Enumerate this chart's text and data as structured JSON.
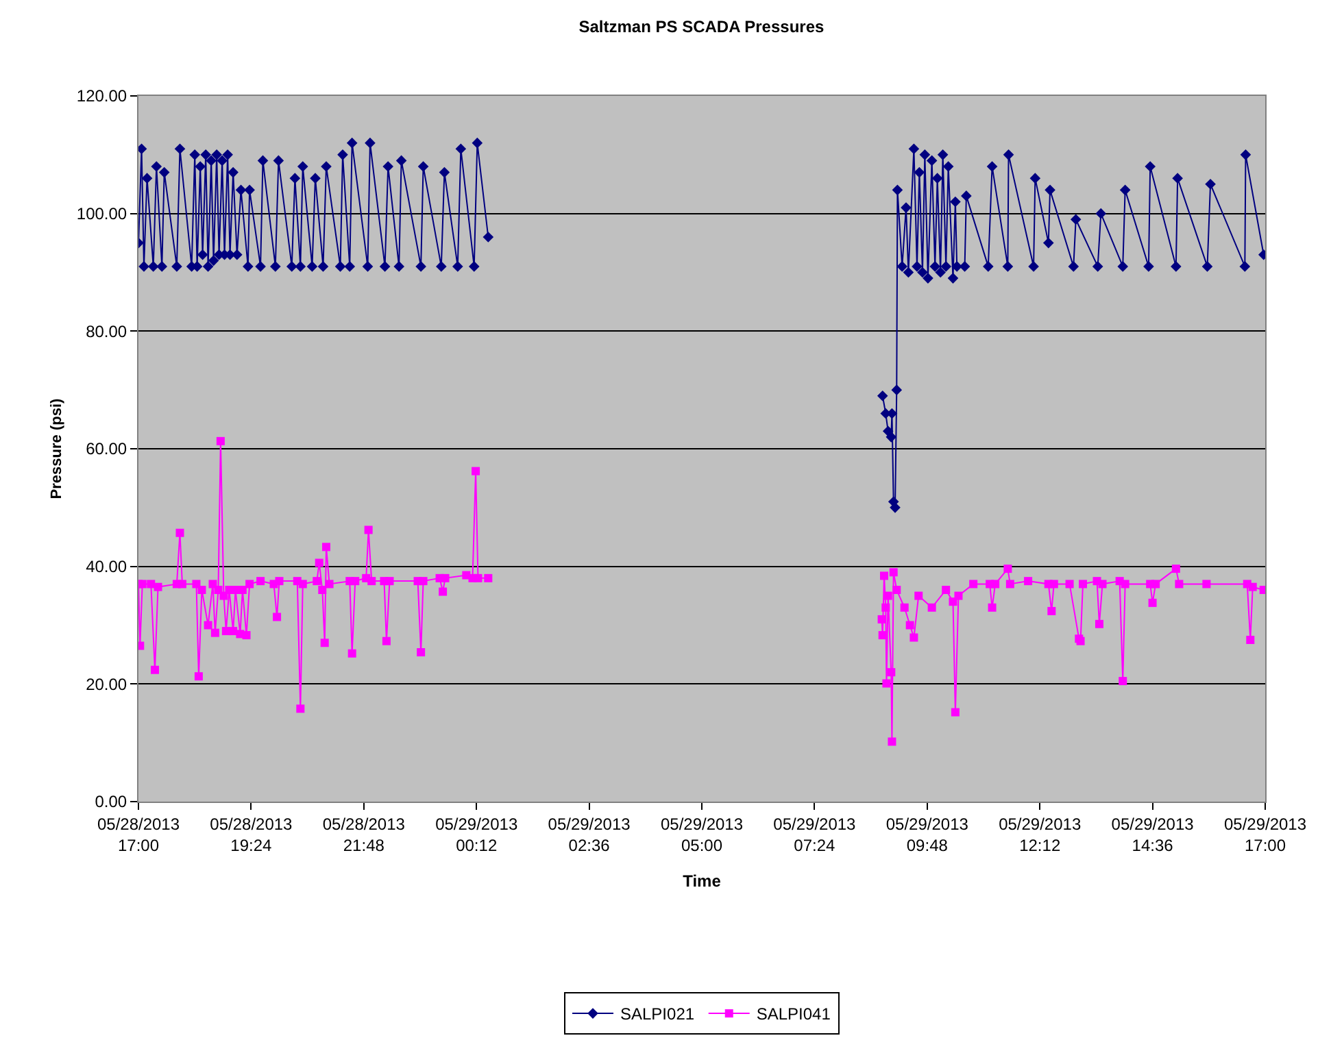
{
  "chart_data": {
    "type": "line",
    "title": "Saltzman PS SCADA Pressures",
    "xlabel": "Time",
    "ylabel": "Pressure (psi)",
    "xlim": [
      "2013-05-28T17:00",
      "2013-05-29T17:00"
    ],
    "xticks": [
      {
        "value": "2013-05-28T17:00",
        "label": "05/28/2013\n17:00"
      },
      {
        "value": "2013-05-28T19:24",
        "label": "05/28/2013\n19:24"
      },
      {
        "value": "2013-05-28T21:48",
        "label": "05/28/2013\n21:48"
      },
      {
        "value": "2013-05-29T00:12",
        "label": "05/29/2013\n00:12"
      },
      {
        "value": "2013-05-29T02:36",
        "label": "05/29/2013\n02:36"
      },
      {
        "value": "2013-05-29T05:00",
        "label": "05/29/2013\n05:00"
      },
      {
        "value": "2013-05-29T07:24",
        "label": "05/29/2013\n07:24"
      },
      {
        "value": "2013-05-29T09:48",
        "label": "05/29/2013\n09:48"
      },
      {
        "value": "2013-05-29T12:12",
        "label": "05/29/2013\n12:12"
      },
      {
        "value": "2013-05-29T14:36",
        "label": "05/29/2013\n14:36"
      },
      {
        "value": "2013-05-29T17:00",
        "label": "05/29/2013\n17:00"
      }
    ],
    "ylim": [
      0,
      120
    ],
    "yticks": [
      {
        "value": 0,
        "label": "0.00"
      },
      {
        "value": 20,
        "label": "20.00"
      },
      {
        "value": 40,
        "label": "40.00"
      },
      {
        "value": 60,
        "label": "60.00"
      },
      {
        "value": 80,
        "label": "80.00"
      },
      {
        "value": 100,
        "label": "100.00"
      },
      {
        "value": 120,
        "label": "120.00"
      }
    ],
    "grid": "y",
    "legend": "bottom",
    "line_style": "solid",
    "series": [
      {
        "name": "SALPI021",
        "color": "#000080",
        "marker": "diamond",
        "x": [
          "2013-05-28T17:00",
          "2013-05-28T17:04",
          "2013-05-28T17:07",
          "2013-05-28T17:11",
          "2013-05-28T17:19",
          "2013-05-28T17:23",
          "2013-05-28T17:30",
          "2013-05-28T17:33",
          "2013-05-28T17:49",
          "2013-05-28T17:53",
          "2013-05-28T18:08",
          "2013-05-28T18:12",
          "2013-05-28T18:15",
          "2013-05-28T18:19",
          "2013-05-28T18:22",
          "2013-05-28T18:26",
          "2013-05-28T18:29",
          "2013-05-28T18:33",
          "2013-05-28T18:36",
          "2013-05-28T18:40",
          "2013-05-28T18:43",
          "2013-05-28T18:47",
          "2013-05-28T18:50",
          "2013-05-28T18:54",
          "2013-05-28T18:57",
          "2013-05-28T19:01",
          "2013-05-28T19:06",
          "2013-05-28T19:11",
          "2013-05-28T19:20",
          "2013-05-28T19:22",
          "2013-05-28T19:36",
          "2013-05-28T19:39",
          "2013-05-28T19:55",
          "2013-05-28T19:59",
          "2013-05-28T20:16",
          "2013-05-28T20:20",
          "2013-05-28T20:27",
          "2013-05-28T20:30",
          "2013-05-28T20:42",
          "2013-05-28T20:46",
          "2013-05-28T20:56",
          "2013-05-28T21:00",
          "2013-05-28T21:18",
          "2013-05-28T21:21",
          "2013-05-28T21:30",
          "2013-05-28T21:33",
          "2013-05-28T21:53",
          "2013-05-28T21:56",
          "2013-05-28T22:15",
          "2013-05-28T22:19",
          "2013-05-28T22:33",
          "2013-05-28T22:36",
          "2013-05-28T23:01",
          "2013-05-28T23:04",
          "2013-05-28T23:27",
          "2013-05-28T23:31",
          "2013-05-28T23:48",
          "2013-05-28T23:52",
          "2013-05-29T00:09",
          "2013-05-29T00:13",
          "2013-05-29T00:27",
          "2013-05-29T04:00",
          "2013-05-29T08:51",
          "2013-05-29T08:55",
          "2013-05-29T08:58",
          "2013-05-29T09:02",
          "2013-05-29T09:03",
          "2013-05-29T09:05",
          "2013-05-29T09:07",
          "2013-05-29T09:09",
          "2013-05-29T09:10",
          "2013-05-29T09:16",
          "2013-05-29T09:21",
          "2013-05-29T09:24",
          "2013-05-29T09:31",
          "2013-05-29T09:35",
          "2013-05-29T09:38",
          "2013-05-29T09:42",
          "2013-05-29T09:45",
          "2013-05-29T09:49",
          "2013-05-29T09:54",
          "2013-05-29T09:58",
          "2013-05-29T10:01",
          "2013-05-29T10:05",
          "2013-05-29T10:08",
          "2013-05-29T10:12",
          "2013-05-29T10:15",
          "2013-05-29T10:21",
          "2013-05-29T10:24",
          "2013-05-29T10:26",
          "2013-05-29T10:36",
          "2013-05-29T10:38",
          "2013-05-29T11:06",
          "2013-05-29T11:11",
          "2013-05-29T11:31",
          "2013-05-29T11:32",
          "2013-05-29T12:04",
          "2013-05-29T12:06",
          "2013-05-29T12:23",
          "2013-05-29T12:25",
          "2013-05-29T12:55",
          "2013-05-29T12:58",
          "2013-05-29T13:26",
          "2013-05-29T13:30",
          "2013-05-29T13:58",
          "2013-05-29T14:01",
          "2013-05-29T14:31",
          "2013-05-29T14:33",
          "2013-05-29T15:06",
          "2013-05-29T15:08",
          "2013-05-29T15:46",
          "2013-05-29T15:50",
          "2013-05-29T16:34",
          "2013-05-29T16:35",
          "2013-05-29T16:58"
        ],
        "values": [
          95,
          111,
          91,
          106,
          91,
          108,
          91,
          107,
          91,
          111,
          91,
          110,
          91,
          108,
          93,
          110,
          91,
          109,
          92,
          110,
          93,
          109,
          93,
          110,
          93,
          107,
          93,
          104,
          91,
          104,
          91,
          109,
          91,
          109,
          91,
          106,
          91,
          108,
          91,
          106,
          91,
          108,
          91,
          110,
          91,
          112,
          91,
          112,
          91,
          108,
          91,
          109,
          91,
          108,
          91,
          107,
          91,
          111,
          91,
          112,
          96,
          null,
          69,
          66,
          63,
          62,
          66,
          51,
          50,
          70,
          104,
          91,
          101,
          90,
          111,
          91,
          107,
          90,
          110,
          89,
          109,
          91,
          106,
          90,
          110,
          91,
          108,
          89,
          102,
          91,
          91,
          103,
          91,
          108,
          91,
          110,
          91,
          106,
          95,
          104,
          91,
          99,
          91,
          100,
          91,
          104,
          91,
          108,
          91,
          106,
          91,
          105,
          91,
          110,
          93
        ]
      },
      {
        "name": "SALPI041",
        "color": "#ff00ff",
        "marker": "square",
        "x": [
          "2013-05-28T17:00",
          "2013-05-28T17:02",
          "2013-05-28T17:05",
          "2013-05-28T17:16",
          "2013-05-28T17:21",
          "2013-05-28T17:25",
          "2013-05-28T17:49",
          "2013-05-28T17:53",
          "2013-05-28T17:56",
          "2013-05-28T18:14",
          "2013-05-28T18:17",
          "2013-05-28T18:21",
          "2013-05-28T18:29",
          "2013-05-28T18:35",
          "2013-05-28T18:38",
          "2013-05-28T18:42",
          "2013-05-28T18:45",
          "2013-05-28T18:49",
          "2013-05-28T18:52",
          "2013-05-28T18:56",
          "2013-05-28T19:01",
          "2013-05-28T19:04",
          "2013-05-28T19:10",
          "2013-05-28T19:13",
          "2013-05-28T19:18",
          "2013-05-28T19:22",
          "2013-05-28T19:36",
          "2013-05-28T19:53",
          "2013-05-28T19:57",
          "2013-05-28T20:00",
          "2013-05-28T20:23",
          "2013-05-28T20:27",
          "2013-05-28T20:30",
          "2013-05-28T20:48",
          "2013-05-28T20:51",
          "2013-05-28T20:55",
          "2013-05-28T20:58",
          "2013-05-28T21:00",
          "2013-05-28T21:04",
          "2013-05-28T21:30",
          "2013-05-28T21:33",
          "2013-05-28T21:37",
          "2013-05-28T21:51",
          "2013-05-28T21:54",
          "2013-05-28T21:58",
          "2013-05-28T22:14",
          "2013-05-28T22:17",
          "2013-05-28T22:21",
          "2013-05-28T22:57",
          "2013-05-28T23:01",
          "2013-05-28T23:04",
          "2013-05-28T23:25",
          "2013-05-28T23:29",
          "2013-05-28T23:32",
          "2013-05-28T23:59",
          "2013-05-29T00:07",
          "2013-05-29T00:11",
          "2013-05-29T00:14",
          "2013-05-29T00:27",
          "2013-05-29T04:00",
          "2013-05-29T08:50",
          "2013-05-29T08:51",
          "2013-05-29T08:53",
          "2013-05-29T08:55",
          "2013-05-29T08:56",
          "2013-05-29T08:58",
          "2013-05-29T09:02",
          "2013-05-29T09:03",
          "2013-05-29T09:05",
          "2013-05-29T09:09",
          "2013-05-29T09:19",
          "2013-05-29T09:26",
          "2013-05-29T09:31",
          "2013-05-29T09:37",
          "2013-05-29T09:54",
          "2013-05-29T10:12",
          "2013-05-29T10:21",
          "2013-05-29T10:24",
          "2013-05-29T10:28",
          "2013-05-29T10:47",
          "2013-05-29T11:08",
          "2013-05-29T11:11",
          "2013-05-29T11:15",
          "2013-05-29T11:31",
          "2013-05-29T11:34",
          "2013-05-29T11:57",
          "2013-05-29T12:23",
          "2013-05-29T12:27",
          "2013-05-29T12:30",
          "2013-05-29T12:50",
          "2013-05-29T13:02",
          "2013-05-29T13:04",
          "2013-05-29T13:07",
          "2013-05-29T13:25",
          "2013-05-29T13:28",
          "2013-05-29T13:32",
          "2013-05-29T13:54",
          "2013-05-29T13:58",
          "2013-05-29T14:01",
          "2013-05-29T14:33",
          "2013-05-29T14:36",
          "2013-05-29T14:40",
          "2013-05-29T15:06",
          "2013-05-29T15:10",
          "2013-05-29T15:45",
          "2013-05-29T16:37",
          "2013-05-29T16:41",
          "2013-05-29T16:44",
          "2013-05-29T16:58"
        ],
        "values": [
          37,
          26.5,
          37,
          37,
          22.4,
          36.5,
          37,
          45.7,
          37,
          37,
          21.3,
          36,
          30,
          37,
          28.7,
          36,
          61.3,
          35,
          29,
          36,
          29,
          36,
          28.5,
          36,
          28.3,
          37,
          37.5,
          37,
          31.4,
          37.5,
          37.5,
          15.8,
          37,
          37.5,
          40.6,
          36,
          27,
          43.3,
          37,
          37.5,
          25.2,
          37.5,
          38,
          46.2,
          37.5,
          37.5,
          27.3,
          37.5,
          37.5,
          25.4,
          37.5,
          38,
          35.7,
          38,
          38.5,
          38,
          56.2,
          38,
          38,
          null,
          31,
          28.3,
          38.4,
          33,
          20.1,
          35,
          22,
          10.2,
          39,
          36,
          33,
          30,
          27.9,
          35,
          33,
          36,
          34,
          15.2,
          35,
          37,
          37,
          33,
          37,
          39.6,
          37,
          37.5,
          37,
          32.4,
          37,
          37,
          27.7,
          27.3,
          37,
          37.5,
          30.2,
          37,
          37.5,
          20.5,
          37,
          37,
          33.8,
          37,
          39.6,
          37,
          37,
          37,
          27.5,
          36.5,
          36
        ]
      }
    ]
  }
}
